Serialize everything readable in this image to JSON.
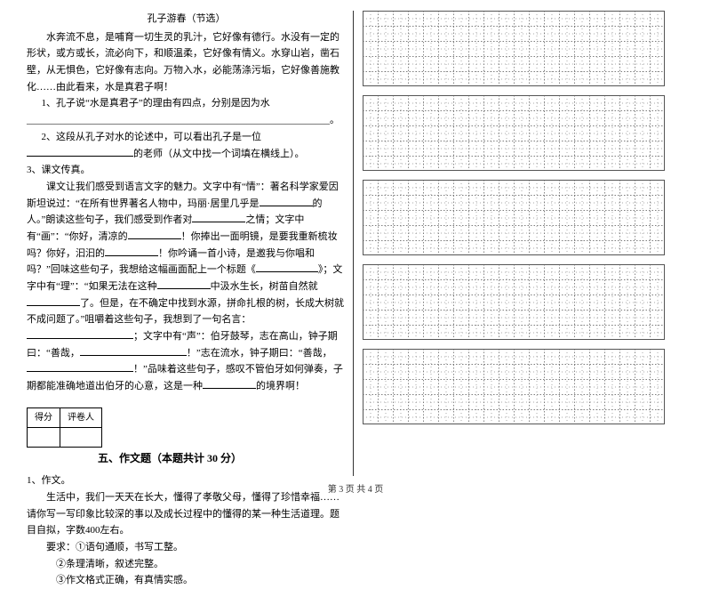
{
  "leftColumn": {
    "title": "孔子游春（节选）",
    "p1": "水奔流不息，是哺育一切生灵的乳汁，它好像有德行。水没有一定的形状，或方或长，流必向下，和顺温柔，它好像有情义。水穿山岩，凿石壁，从无惧色，它好像有志向。万物入水，必能荡涤污垢，它好像善施教化……由此看来，水是真君子啊！",
    "q1": "1、孔子说“水是真君子”的理由有四点，分别是因为水",
    "q1line": "______________________________________________________________。",
    "q2a": "2、这段从孔子对水的论述中，可以看出孔子是一位",
    "q2b": "的老师（从文中找一个词填在横线上）。",
    "q3": "3、课文传真。",
    "p3a": "课文让我们感受到语言文字的魅力。文字中有“情”：著名科学家爱因斯坦说过：“在所有世界著名人物中，玛丽·居里几乎是",
    "p3b": "的人。”朗读这些句子，我们感受到作者对",
    "p3c": "之情；文字中有“画”：“你好，清凉的",
    "p3d": "！你捧出一面明镜，是要我重新梳妆吗？你好，汩汩的",
    "p3e": "！你吟诵一首小诗，是邀我与你唱和吗？”回味这些句子，我想给这幅画面配上一个标题《",
    "p3f": "》；文字中有“理”：“如果无法在这种",
    "p3g": "中汲水生长，树苗自然就",
    "p3h": "了。但是，在不确定中找到水源，拼命扎根的树，长成大树就不成问题了。”咀嚼着这些句子，我想到了一句名言：",
    "p3i": "；文字中有“声”：伯牙鼓琴，志在高山，钟子期曰：“善哉，",
    "p3j": "！”志在流水，钟子期曰：“善哉，",
    "p3k": "！”品味着这些句子，感叹不管伯牙如何弹奏，子期都能准确地道出伯牙的心意，这是一种",
    "p3l": "的境界啊！",
    "scoreTable": {
      "c1": "得分",
      "c2": "评卷人"
    },
    "sectionTitle": "五、作文题（本题共计 30 分）",
    "essay1": "1、作文。",
    "essayBody": "生活中，我们一天天在长大，懂得了孝敬父母，懂得了珍惜幸福……请你写一写印象比较深的事以及成长过程中的懂得的某一种生活道理。题目自拟，字数400左右。",
    "reqLabel": "要求：",
    "req1": "①语句通顺，书写工整。",
    "req2": "②条理清晰，叙述完整。",
    "req3": "③作文格式正确，有真情实感。"
  },
  "grid": {
    "blocks": 5,
    "cols": 20,
    "rows": 5,
    "cellSize": 17,
    "stroke": "#555555",
    "dashInner": "1.5 2",
    "blockWidth": 340,
    "blockHeight": 85
  },
  "footer": "第 3 页  共 4 页"
}
